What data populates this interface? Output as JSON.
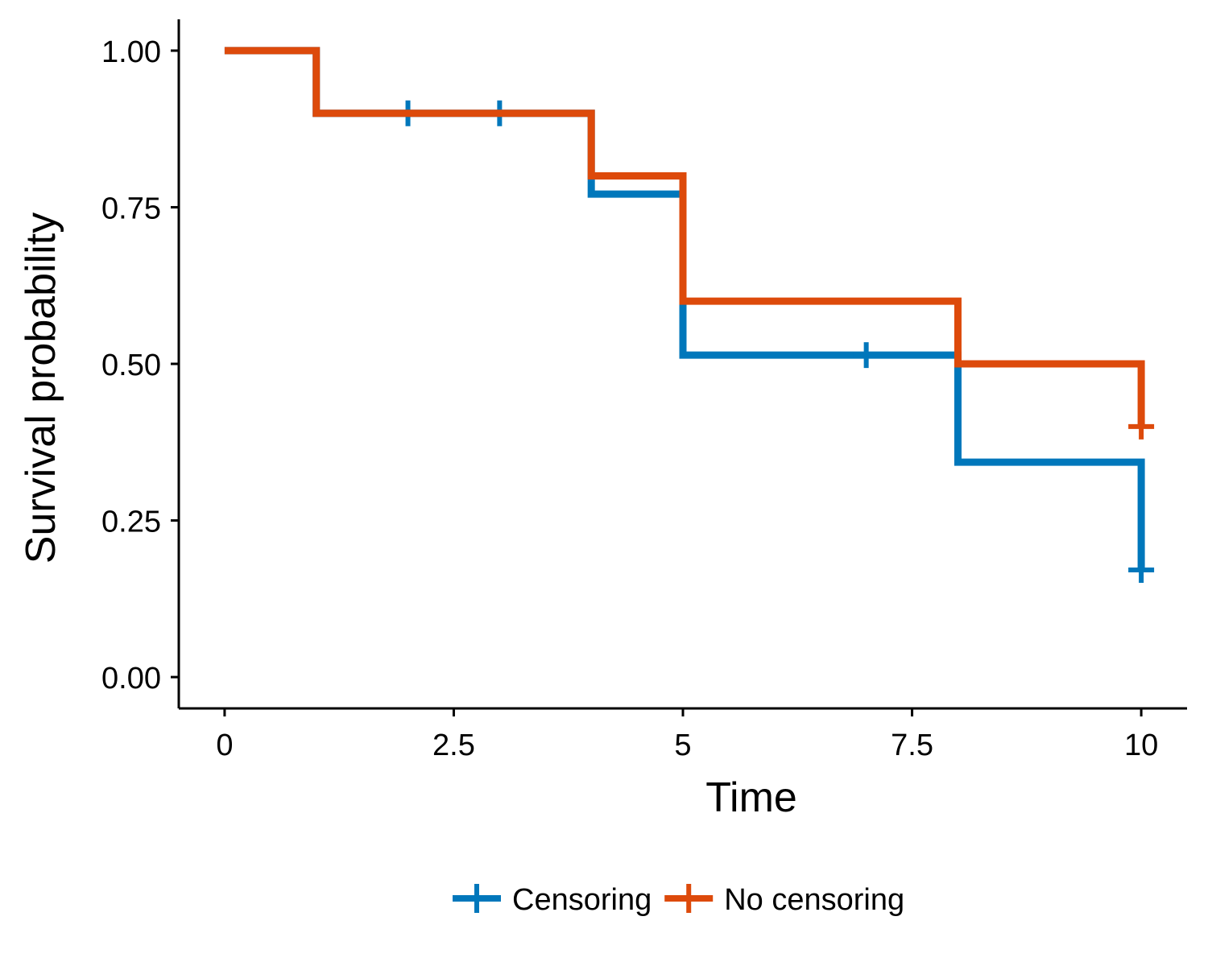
{
  "chart_data": {
    "type": "line",
    "step": true,
    "xlabel": "Time",
    "ylabel": "Survival probability",
    "xlim": [
      -0.5,
      10.5
    ],
    "ylim": [
      -0.05,
      1.05
    ],
    "x_ticks": [
      0,
      2.5,
      5,
      7.5,
      10
    ],
    "x_tick_labels": [
      "0",
      "2.5",
      "5",
      "7.5",
      "10"
    ],
    "y_ticks": [
      0,
      0.25,
      0.5,
      0.75,
      1.0
    ],
    "y_tick_labels": [
      "0.00",
      "0.25",
      "0.50",
      "0.75",
      "1.00"
    ],
    "grid": false,
    "legend_position": "bottom",
    "series": [
      {
        "name": "Censoring",
        "color": "#0077BB",
        "steps": [
          {
            "x": 0,
            "y": 1.0
          },
          {
            "x": 1,
            "y": 0.9
          },
          {
            "x": 4,
            "y": 0.771
          },
          {
            "x": 5,
            "y": 0.514
          },
          {
            "x": 8,
            "y": 0.343
          },
          {
            "x": 10,
            "y": 0.171
          }
        ],
        "censor_marks": [
          {
            "x": 2,
            "y": 0.9
          },
          {
            "x": 3,
            "y": 0.9
          },
          {
            "x": 7,
            "y": 0.514
          },
          {
            "x": 10,
            "y": 0.171
          }
        ]
      },
      {
        "name": "No censoring",
        "color": "#DD4A0B",
        "steps": [
          {
            "x": 0,
            "y": 1.0
          },
          {
            "x": 1,
            "y": 0.9
          },
          {
            "x": 4,
            "y": 0.8
          },
          {
            "x": 5,
            "y": 0.6
          },
          {
            "x": 8,
            "y": 0.5
          },
          {
            "x": 10,
            "y": 0.4
          }
        ],
        "censor_marks": [
          {
            "x": 10,
            "y": 0.4
          }
        ]
      }
    ]
  }
}
